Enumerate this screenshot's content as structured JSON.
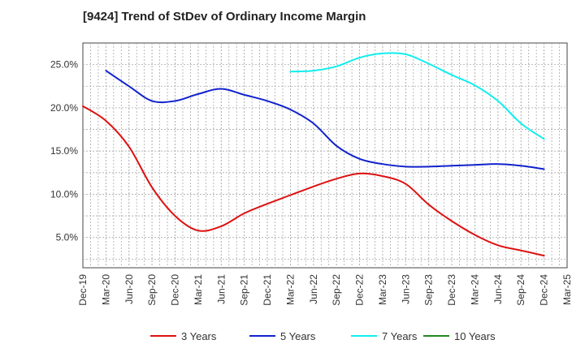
{
  "chart_data": {
    "type": "line",
    "title": "[9424]  Trend of StDev of Ordinary Income Margin",
    "xlabel": "",
    "ylabel": "",
    "x_tick_labels": [
      "Dec-19",
      "Mar-20",
      "Jun-20",
      "Sep-20",
      "Dec-20",
      "Mar-21",
      "Jun-21",
      "Sep-21",
      "Dec-21",
      "Mar-22",
      "Jun-22",
      "Sep-22",
      "Dec-22",
      "Mar-23",
      "Jun-23",
      "Sep-23",
      "Dec-23",
      "Mar-24",
      "Jun-24",
      "Sep-24",
      "Dec-24",
      "Mar-25"
    ],
    "y_ticks": [
      5,
      10,
      15,
      20,
      25
    ],
    "y_tick_labels": [
      "5.0%",
      "10.0%",
      "15.0%",
      "20.0%",
      "25.0%"
    ],
    "ylim": [
      1.5,
      27.5
    ],
    "grid": true,
    "legend_position": "bottom",
    "series": [
      {
        "name": "3 Years",
        "color": "#dd1111",
        "x": [
          "Dec-19",
          "Mar-20",
          "Jun-20",
          "Sep-20",
          "Dec-20",
          "Mar-21",
          "Jun-21",
          "Sep-21",
          "Dec-21",
          "Mar-22",
          "Jun-22",
          "Sep-22",
          "Dec-22",
          "Mar-23",
          "Jun-23",
          "Sep-23",
          "Dec-23",
          "Mar-24",
          "Jun-24",
          "Sep-24",
          "Dec-24"
        ],
        "values": [
          20.2,
          18.5,
          15.5,
          10.8,
          7.5,
          5.8,
          6.3,
          7.8,
          8.9,
          9.9,
          10.9,
          11.8,
          12.4,
          12.1,
          11.2,
          8.8,
          6.9,
          5.3,
          4.1,
          3.5,
          2.9
        ]
      },
      {
        "name": "5 Years",
        "color": "#1122cc",
        "x": [
          "Mar-20",
          "Jun-20",
          "Sep-20",
          "Dec-20",
          "Mar-21",
          "Jun-21",
          "Sep-21",
          "Dec-21",
          "Mar-22",
          "Jun-22",
          "Sep-22",
          "Dec-22",
          "Mar-23",
          "Jun-23",
          "Sep-23",
          "Dec-23",
          "Mar-24",
          "Jun-24",
          "Sep-24",
          "Dec-24"
        ],
        "values": [
          24.3,
          22.5,
          20.8,
          20.8,
          21.6,
          22.2,
          21.5,
          20.8,
          19.8,
          18.2,
          15.6,
          14.1,
          13.5,
          13.2,
          13.2,
          13.3,
          13.4,
          13.5,
          13.3,
          12.9
        ]
      },
      {
        "name": "7 Years",
        "color": "#11eeee",
        "x": [
          "Mar-22",
          "Jun-22",
          "Sep-22",
          "Dec-22",
          "Mar-23",
          "Jun-23",
          "Sep-23",
          "Dec-23",
          "Mar-24",
          "Jun-24",
          "Sep-24",
          "Dec-24"
        ],
        "values": [
          24.2,
          24.3,
          24.8,
          25.8,
          26.3,
          26.2,
          25.1,
          23.8,
          22.6,
          20.8,
          18.2,
          16.4
        ]
      },
      {
        "name": "10 Years",
        "color": "#228822",
        "x": [],
        "values": []
      }
    ]
  }
}
